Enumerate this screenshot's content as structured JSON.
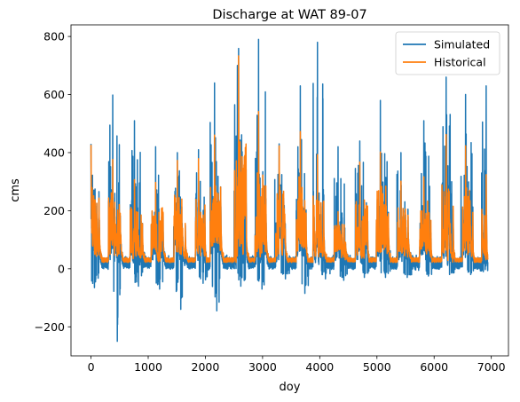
{
  "chart_data": {
    "type": "line",
    "title": "Discharge at WAT 89-07",
    "xlabel": "doy",
    "ylabel": "cms",
    "xlim": [
      -350,
      7300
    ],
    "ylim": [
      -300,
      840
    ],
    "xticks": [
      0,
      1000,
      2000,
      3000,
      4000,
      5000,
      6000,
      7000
    ],
    "yticks": [
      -200,
      0,
      200,
      400,
      600,
      800
    ],
    "xtick_labels": [
      "0",
      "1000",
      "2000",
      "3000",
      "4000",
      "5000",
      "6000",
      "7000"
    ],
    "ytick_labels": [
      "−200",
      "0",
      "200",
      "400",
      "600",
      "800"
    ],
    "grid": false,
    "legend_position": "top-right",
    "series": [
      {
        "name": "Simulated",
        "color": "#1f77b4",
        "annual_peaks": [
          {
            "x": 0,
            "y": 430
          },
          {
            "x": 380,
            "y": 598
          },
          {
            "x": 760,
            "y": 510
          },
          {
            "x": 1130,
            "y": 420
          },
          {
            "x": 1510,
            "y": 400
          },
          {
            "x": 1880,
            "y": 410
          },
          {
            "x": 2160,
            "y": 640
          },
          {
            "x": 2560,
            "y": 700
          },
          {
            "x": 2930,
            "y": 790
          },
          {
            "x": 3290,
            "y": 430
          },
          {
            "x": 3660,
            "y": 630
          },
          {
            "x": 3960,
            "y": 780
          },
          {
            "x": 4320,
            "y": 420
          },
          {
            "x": 4700,
            "y": 440
          },
          {
            "x": 5060,
            "y": 580
          },
          {
            "x": 5420,
            "y": 400
          },
          {
            "x": 5820,
            "y": 510
          },
          {
            "x": 6210,
            "y": 660
          },
          {
            "x": 6550,
            "y": 600
          },
          {
            "x": 6910,
            "y": 630
          }
        ],
        "annual_minima": [
          {
            "x": 60,
            "y": -65
          },
          {
            "x": 460,
            "y": -250
          },
          {
            "x": 830,
            "y": -60
          },
          {
            "x": 1200,
            "y": -70
          },
          {
            "x": 1570,
            "y": -140
          },
          {
            "x": 1960,
            "y": -50
          },
          {
            "x": 2200,
            "y": -145
          },
          {
            "x": 2620,
            "y": -60
          },
          {
            "x": 2990,
            "y": -70
          },
          {
            "x": 3400,
            "y": -35
          },
          {
            "x": 3740,
            "y": -85
          },
          {
            "x": 4100,
            "y": -35
          },
          {
            "x": 4420,
            "y": -40
          },
          {
            "x": 4780,
            "y": -30
          },
          {
            "x": 5150,
            "y": -30
          },
          {
            "x": 5530,
            "y": -30
          },
          {
            "x": 5900,
            "y": -25
          },
          {
            "x": 6270,
            "y": -20
          },
          {
            "x": 6640,
            "y": -20
          },
          {
            "x": 6860,
            "y": -10
          }
        ]
      },
      {
        "name": "Historical",
        "color": "#ff7f0e",
        "annual_peaks": [
          {
            "x": 0,
            "y": 430
          },
          {
            "x": 380,
            "y": 380
          },
          {
            "x": 760,
            "y": 310
          },
          {
            "x": 1130,
            "y": 300
          },
          {
            "x": 1510,
            "y": 370
          },
          {
            "x": 1880,
            "y": 380
          },
          {
            "x": 2160,
            "y": 460
          },
          {
            "x": 2580,
            "y": 735
          },
          {
            "x": 2930,
            "y": 545
          },
          {
            "x": 3290,
            "y": 420
          },
          {
            "x": 3660,
            "y": 470
          },
          {
            "x": 3960,
            "y": 390
          },
          {
            "x": 4320,
            "y": 200
          },
          {
            "x": 4700,
            "y": 365
          },
          {
            "x": 5060,
            "y": 405
          },
          {
            "x": 5420,
            "y": 300
          },
          {
            "x": 5820,
            "y": 320
          },
          {
            "x": 6210,
            "y": 460
          },
          {
            "x": 6550,
            "y": 420
          },
          {
            "x": 6910,
            "y": 320
          }
        ],
        "annual_baseflow": [
          {
            "x": 200,
            "y": 25
          },
          {
            "x": 580,
            "y": 25
          },
          {
            "x": 950,
            "y": 25
          },
          {
            "x": 1320,
            "y": 25
          },
          {
            "x": 1700,
            "y": 25
          },
          {
            "x": 2050,
            "y": 25
          },
          {
            "x": 2400,
            "y": 30
          },
          {
            "x": 2760,
            "y": 30
          },
          {
            "x": 3120,
            "y": 30
          },
          {
            "x": 3480,
            "y": 30
          },
          {
            "x": 3840,
            "y": 30
          },
          {
            "x": 4180,
            "y": 30
          },
          {
            "x": 4520,
            "y": 25
          },
          {
            "x": 4880,
            "y": 25
          },
          {
            "x": 5240,
            "y": 25
          },
          {
            "x": 5620,
            "y": 25
          },
          {
            "x": 6000,
            "y": 25
          },
          {
            "x": 6380,
            "y": 25
          },
          {
            "x": 6740,
            "y": 25
          }
        ]
      }
    ]
  }
}
